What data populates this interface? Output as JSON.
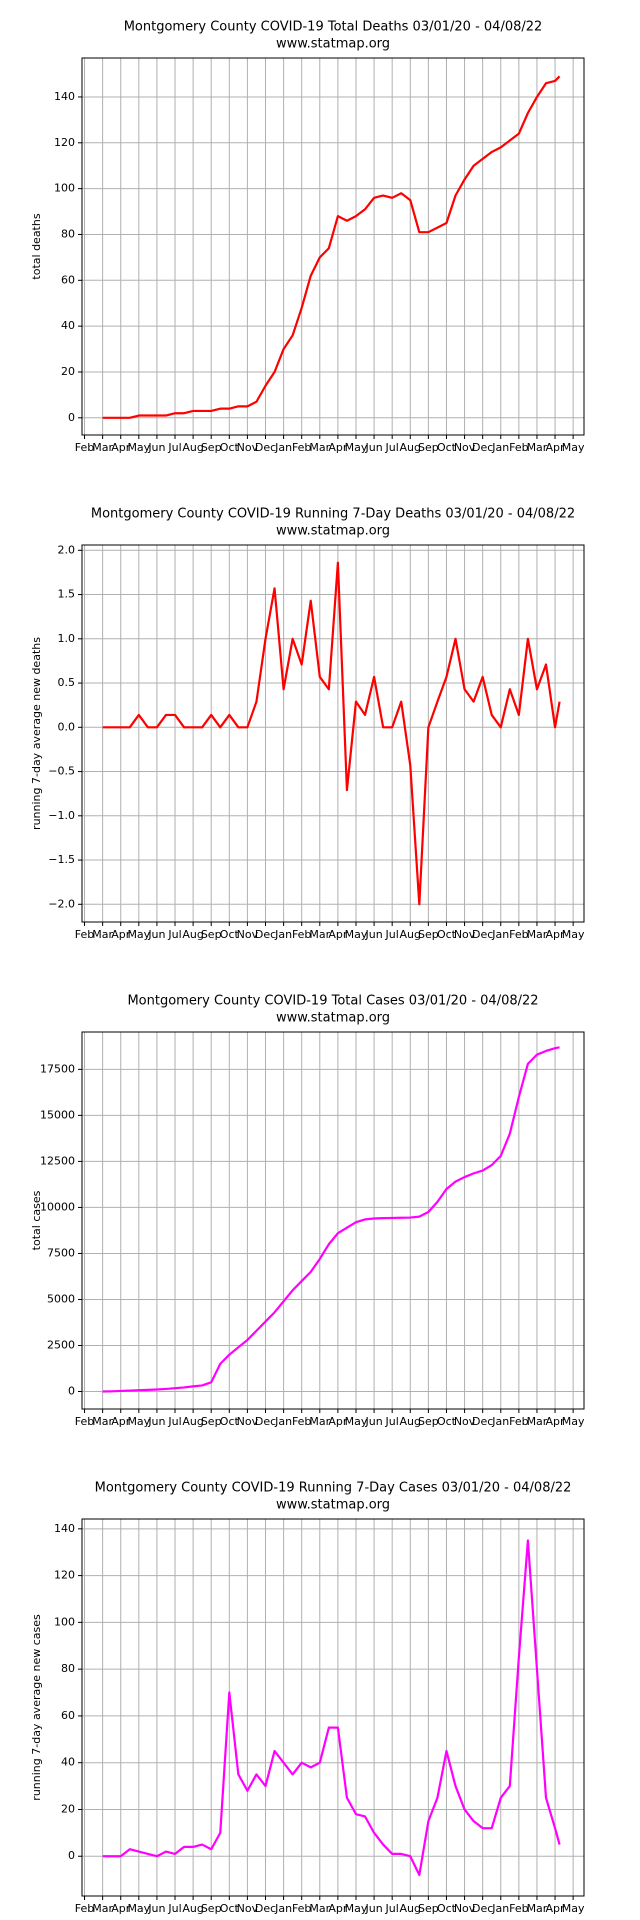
{
  "chart_data": [
    {
      "type": "line",
      "title": "Montgomery County COVID-19 Total Deaths 03/01/20 - 04/08/22",
      "subtitle": "www.statmap.org",
      "y_label": "total deaths",
      "color": "#ff0000",
      "grid": true,
      "xlim": [
        -0.14,
        27.6
      ],
      "xticks": [
        {
          "value": 0,
          "label": "Feb"
        },
        {
          "value": 1,
          "label": "Mar"
        },
        {
          "value": 2,
          "label": "Apr"
        },
        {
          "value": 3,
          "label": "May"
        },
        {
          "value": 4,
          "label": "Jun"
        },
        {
          "value": 5,
          "label": "Jul"
        },
        {
          "value": 6,
          "label": "Aug"
        },
        {
          "value": 7,
          "label": "Sep"
        },
        {
          "value": 8,
          "label": "Oct"
        },
        {
          "value": 9,
          "label": "Nov"
        },
        {
          "value": 10,
          "label": "Dec"
        },
        {
          "value": 11,
          "label": "Jan"
        },
        {
          "value": 12,
          "label": "Feb"
        },
        {
          "value": 13,
          "label": "Mar"
        },
        {
          "value": 14,
          "label": "Apr"
        },
        {
          "value": 15,
          "label": "May"
        },
        {
          "value": 16,
          "label": "Jun"
        },
        {
          "value": 17,
          "label": "Jul"
        },
        {
          "value": 18,
          "label": "Aug"
        },
        {
          "value": 19,
          "label": "Sep"
        },
        {
          "value": 20,
          "label": "Oct"
        },
        {
          "value": 21,
          "label": "Nov"
        },
        {
          "value": 22,
          "label": "Dec"
        },
        {
          "value": 23,
          "label": "Jan"
        },
        {
          "value": 24,
          "label": "Feb"
        },
        {
          "value": 25,
          "label": "Mar"
        },
        {
          "value": 26,
          "label": "Apr"
        },
        {
          "value": 27,
          "label": "May"
        }
      ],
      "ylim": [
        -7.5,
        157
      ],
      "yticks": [
        0,
        20,
        40,
        60,
        80,
        100,
        120,
        140
      ],
      "x": [
        1,
        1.5,
        2,
        2.5,
        3,
        3.5,
        4,
        4.5,
        5,
        5.5,
        6,
        6.5,
        7,
        7.5,
        8,
        8.5,
        9,
        9.5,
        10,
        10.5,
        11,
        11.5,
        12,
        12.5,
        13,
        13.5,
        14,
        14.5,
        15,
        15.5,
        16,
        16.5,
        17,
        17.5,
        18,
        18.5,
        19,
        19.5,
        20,
        20.5,
        21,
        21.5,
        22,
        22.5,
        23,
        23.5,
        24,
        24.5,
        25,
        25.5,
        26,
        26.25
      ],
      "values": [
        0,
        0,
        0,
        0,
        1,
        1,
        1,
        1,
        2,
        2,
        3,
        3,
        3,
        4,
        4,
        5,
        5,
        7,
        14,
        20,
        30,
        36,
        48,
        62,
        70,
        74,
        88,
        86,
        88,
        91,
        96,
        97,
        96,
        98,
        95,
        81,
        81,
        83,
        85,
        97,
        104,
        110,
        113,
        116,
        118,
        121,
        124,
        133,
        140,
        146,
        147,
        149
      ]
    },
    {
      "type": "line",
      "title": "Montgomery County COVID-19 Running 7-Day Deaths 03/01/20 - 04/08/22",
      "subtitle": "www.statmap.org",
      "y_label": "running 7-day average new deaths",
      "color": "#ff0000",
      "grid": true,
      "xlim": [
        -0.14,
        27.6
      ],
      "xticks": [
        {
          "value": 0,
          "label": "Feb"
        },
        {
          "value": 1,
          "label": "Mar"
        },
        {
          "value": 2,
          "label": "Apr"
        },
        {
          "value": 3,
          "label": "May"
        },
        {
          "value": 4,
          "label": "Jun"
        },
        {
          "value": 5,
          "label": "Jul"
        },
        {
          "value": 6,
          "label": "Aug"
        },
        {
          "value": 7,
          "label": "Sep"
        },
        {
          "value": 8,
          "label": "Oct"
        },
        {
          "value": 9,
          "label": "Nov"
        },
        {
          "value": 10,
          "label": "Dec"
        },
        {
          "value": 11,
          "label": "Jan"
        },
        {
          "value": 12,
          "label": "Feb"
        },
        {
          "value": 13,
          "label": "Mar"
        },
        {
          "value": 14,
          "label": "Apr"
        },
        {
          "value": 15,
          "label": "May"
        },
        {
          "value": 16,
          "label": "Jun"
        },
        {
          "value": 17,
          "label": "Jul"
        },
        {
          "value": 18,
          "label": "Aug"
        },
        {
          "value": 19,
          "label": "Sep"
        },
        {
          "value": 20,
          "label": "Oct"
        },
        {
          "value": 21,
          "label": "Nov"
        },
        {
          "value": 22,
          "label": "Dec"
        },
        {
          "value": 23,
          "label": "Jan"
        },
        {
          "value": 24,
          "label": "Feb"
        },
        {
          "value": 25,
          "label": "Mar"
        },
        {
          "value": 26,
          "label": "Apr"
        },
        {
          "value": 27,
          "label": "May"
        }
      ],
      "ylim": [
        -2.2,
        2.06
      ],
      "yticks": [
        {
          "value": -2,
          "label": "−2.0"
        },
        {
          "value": -1.5,
          "label": "−1.5"
        },
        {
          "value": -1,
          "label": "−1.0"
        },
        {
          "value": -0.5,
          "label": "−0.5"
        },
        {
          "value": 0,
          "label": "0.0"
        },
        0.5,
        {
          "value": 1,
          "label": "1.0"
        },
        1.5,
        {
          "value": 2,
          "label": "2.0"
        }
      ],
      "x": [
        1,
        1.5,
        2,
        2.5,
        3,
        3.5,
        4,
        4.5,
        5,
        5.5,
        6,
        6.5,
        7,
        7.5,
        8,
        8.5,
        9,
        9.5,
        10,
        10.5,
        11,
        11.5,
        12,
        12.5,
        13,
        13.5,
        14,
        14.5,
        15,
        15.5,
        16,
        16.5,
        17,
        17.5,
        18,
        18.5,
        19,
        19.5,
        20,
        20.5,
        21,
        21.5,
        22,
        22.5,
        23,
        23.5,
        24,
        24.5,
        25,
        25.5,
        26,
        26.25
      ],
      "values": [
        0,
        0,
        0,
        0,
        0.14,
        0,
        0,
        0.14,
        0.14,
        0,
        0,
        0,
        0.14,
        0,
        0.14,
        0,
        0,
        0.29,
        1.0,
        1.57,
        0.43,
        1.0,
        0.71,
        1.43,
        0.57,
        0.43,
        1.86,
        -0.71,
        0.29,
        0.14,
        0.57,
        0,
        0,
        0.29,
        -0.43,
        -2.0,
        0,
        0.29,
        0.57,
        1.0,
        0.43,
        0.29,
        0.57,
        0.14,
        0,
        0.43,
        0.14,
        1.0,
        0.43,
        0.71,
        0,
        0.29
      ]
    },
    {
      "type": "line",
      "title": "Montgomery County COVID-19 Total Cases 03/01/20 - 04/08/22",
      "subtitle": "www.statmap.org",
      "y_label": "total cases",
      "color": "#ff00ff",
      "grid": true,
      "xlim": [
        -0.14,
        27.6
      ],
      "xticks": [
        {
          "value": 0,
          "label": "Feb"
        },
        {
          "value": 1,
          "label": "Mar"
        },
        {
          "value": 2,
          "label": "Apr"
        },
        {
          "value": 3,
          "label": "May"
        },
        {
          "value": 4,
          "label": "Jun"
        },
        {
          "value": 5,
          "label": "Jul"
        },
        {
          "value": 6,
          "label": "Aug"
        },
        {
          "value": 7,
          "label": "Sep"
        },
        {
          "value": 8,
          "label": "Oct"
        },
        {
          "value": 9,
          "label": "Nov"
        },
        {
          "value": 10,
          "label": "Dec"
        },
        {
          "value": 11,
          "label": "Jan"
        },
        {
          "value": 12,
          "label": "Feb"
        },
        {
          "value": 13,
          "label": "Mar"
        },
        {
          "value": 14,
          "label": "Apr"
        },
        {
          "value": 15,
          "label": "May"
        },
        {
          "value": 16,
          "label": "Jun"
        },
        {
          "value": 17,
          "label": "Jul"
        },
        {
          "value": 18,
          "label": "Aug"
        },
        {
          "value": 19,
          "label": "Sep"
        },
        {
          "value": 20,
          "label": "Oct"
        },
        {
          "value": 21,
          "label": "Nov"
        },
        {
          "value": 22,
          "label": "Dec"
        },
        {
          "value": 23,
          "label": "Jan"
        },
        {
          "value": 24,
          "label": "Feb"
        },
        {
          "value": 25,
          "label": "Mar"
        },
        {
          "value": 26,
          "label": "Apr"
        },
        {
          "value": 27,
          "label": "May"
        }
      ],
      "ylim": [
        -950,
        19530
      ],
      "yticks": [
        0,
        2500,
        5000,
        7500,
        10000,
        12500,
        15000,
        17500
      ],
      "x": [
        1,
        1.5,
        2,
        2.5,
        3,
        3.5,
        4,
        4.5,
        5,
        5.5,
        6,
        6.5,
        7,
        7.5,
        8,
        8.5,
        9,
        9.5,
        10,
        10.5,
        11,
        11.5,
        12,
        12.5,
        13,
        13.5,
        14,
        14.5,
        15,
        15.5,
        16,
        16.5,
        17,
        17.5,
        18,
        18.5,
        19,
        19.5,
        20,
        20.5,
        21,
        21.5,
        22,
        22.5,
        23,
        23.5,
        24,
        24.5,
        25,
        25.5,
        26,
        26.25
      ],
      "values": [
        0,
        10,
        30,
        50,
        70,
        90,
        110,
        140,
        180,
        220,
        280,
        330,
        500,
        1500,
        2000,
        2400,
        2800,
        3300,
        3800,
        4300,
        4900,
        5500,
        6000,
        6500,
        7200,
        8000,
        8600,
        8900,
        9200,
        9350,
        9400,
        9420,
        9430,
        9440,
        9450,
        9500,
        9750,
        10300,
        11000,
        11400,
        11650,
        11850,
        12000,
        12300,
        12800,
        14000,
        16000,
        17800,
        18300,
        18500,
        18650,
        18700
      ]
    },
    {
      "type": "line",
      "title": "Montgomery County COVID-19 Running 7-Day Cases 03/01/20 - 04/08/22",
      "subtitle": "www.statmap.org",
      "y_label": "running 7-day average new cases",
      "color": "#ff00ff",
      "grid": true,
      "xlim": [
        -0.14,
        27.6
      ],
      "xticks": [
        {
          "value": 0,
          "label": "Feb"
        },
        {
          "value": 1,
          "label": "Mar"
        },
        {
          "value": 2,
          "label": "Apr"
        },
        {
          "value": 3,
          "label": "May"
        },
        {
          "value": 4,
          "label": "Jun"
        },
        {
          "value": 5,
          "label": "Jul"
        },
        {
          "value": 6,
          "label": "Aug"
        },
        {
          "value": 7,
          "label": "Sep"
        },
        {
          "value": 8,
          "label": "Oct"
        },
        {
          "value": 9,
          "label": "Nov"
        },
        {
          "value": 10,
          "label": "Dec"
        },
        {
          "value": 11,
          "label": "Jan"
        },
        {
          "value": 12,
          "label": "Feb"
        },
        {
          "value": 13,
          "label": "Mar"
        },
        {
          "value": 14,
          "label": "Apr"
        },
        {
          "value": 15,
          "label": "May"
        },
        {
          "value": 16,
          "label": "Jun"
        },
        {
          "value": 17,
          "label": "Jul"
        },
        {
          "value": 18,
          "label": "Aug"
        },
        {
          "value": 19,
          "label": "Sep"
        },
        {
          "value": 20,
          "label": "Oct"
        },
        {
          "value": 21,
          "label": "Nov"
        },
        {
          "value": 22,
          "label": "Dec"
        },
        {
          "value": 23,
          "label": "Jan"
        },
        {
          "value": 24,
          "label": "Feb"
        },
        {
          "value": 25,
          "label": "Mar"
        },
        {
          "value": 26,
          "label": "Apr"
        },
        {
          "value": 27,
          "label": "May"
        }
      ],
      "ylim": [
        -17,
        144.2
      ],
      "yticks": [
        0,
        20,
        40,
        60,
        80,
        100,
        120,
        140
      ],
      "x": [
        1,
        1.5,
        2,
        2.5,
        3,
        3.5,
        4,
        4.5,
        5,
        5.5,
        6,
        6.5,
        7,
        7.5,
        8,
        8.5,
        9,
        9.5,
        10,
        10.5,
        11,
        11.5,
        12,
        12.5,
        13,
        13.5,
        14,
        14.5,
        15,
        15.5,
        16,
        16.5,
        17,
        17.5,
        18,
        18.5,
        19,
        19.5,
        20,
        20.5,
        21,
        21.5,
        22,
        22.5,
        23,
        23.5,
        24,
        24.5,
        25,
        25.5,
        26,
        26.25
      ],
      "values": [
        0,
        0,
        0,
        3,
        2,
        1,
        0,
        2,
        1,
        4,
        4,
        5,
        3,
        10,
        70,
        35,
        28,
        35,
        30,
        45,
        40,
        35,
        40,
        38,
        40,
        55,
        55,
        25,
        18,
        17,
        10,
        5,
        1,
        1,
        0,
        -8,
        15,
        25,
        45,
        30,
        20,
        15,
        12,
        12,
        25,
        30,
        85,
        135,
        80,
        25,
        12,
        5
      ]
    }
  ]
}
